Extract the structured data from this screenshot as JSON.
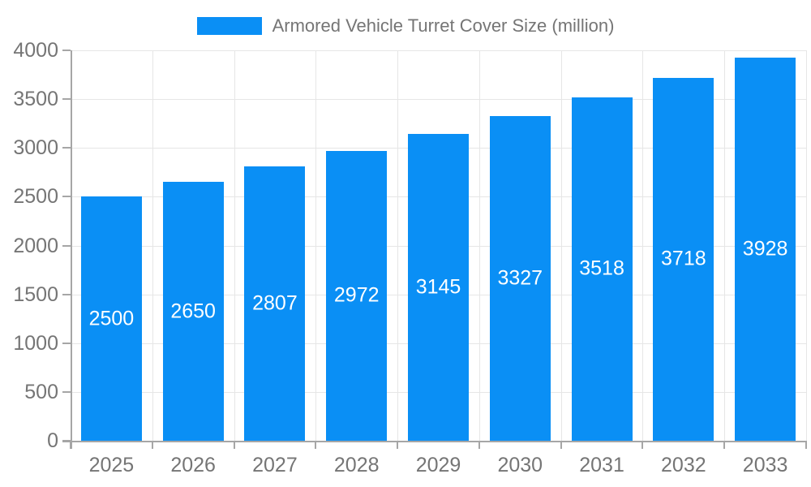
{
  "legend": {
    "label": "Armored Vehicle Turret Cover Size (million)"
  },
  "chart_data": {
    "type": "bar",
    "title": "Armored Vehicle Turret Cover Size (million)",
    "categories": [
      "2025",
      "2026",
      "2027",
      "2028",
      "2029",
      "2030",
      "2031",
      "2032",
      "2033"
    ],
    "values": [
      2500,
      2650,
      2807,
      2972,
      3145,
      3327,
      3518,
      3718,
      3928
    ],
    "series_name": "Armored Vehicle Turret Cover Size (million)",
    "xlabel": "",
    "ylabel": "",
    "ylim": [
      0,
      4000
    ],
    "ytick_step": 500,
    "ytick_labels": [
      "0",
      "500",
      "1000",
      "1500",
      "2000",
      "2500",
      "3000",
      "3500",
      "4000"
    ],
    "grid": "horizontal-and-vertical",
    "legend_position": "top-center",
    "bar_value_labels": "inside-center"
  },
  "colors": {
    "bar": "#0a8ff5",
    "bar_label": "#ffffff",
    "axis_text": "#757575",
    "grid_line": "#e6e6e6",
    "axis_line": "#a6a6a6",
    "background": "#ffffff"
  }
}
